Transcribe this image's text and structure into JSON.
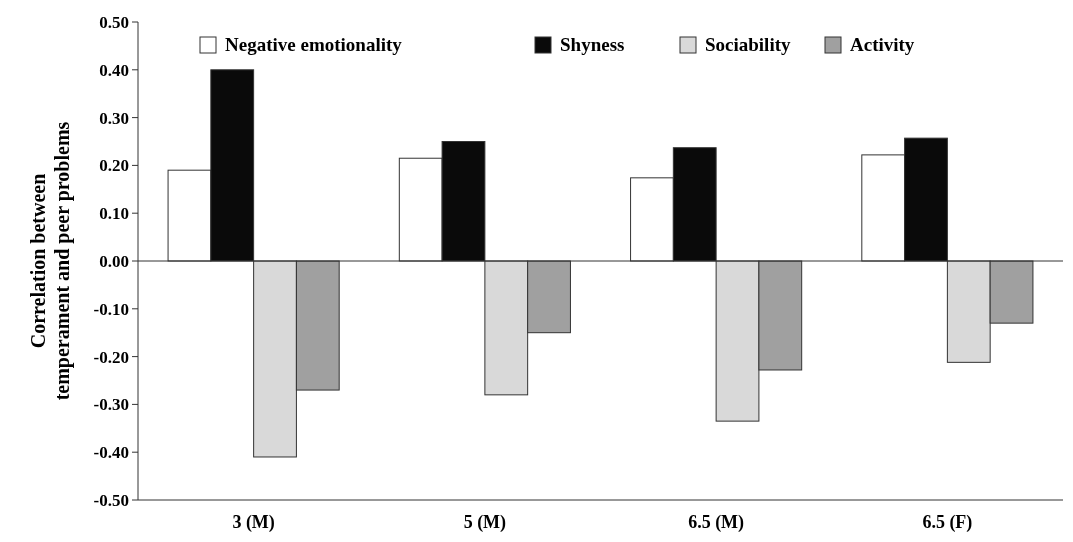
{
  "chart_data": {
    "type": "bar",
    "ylabel": "Correlation between\ntemperament and peer problems",
    "categories": [
      "3 (M)",
      "5 (M)",
      "6.5 (M)",
      "6.5 (F)"
    ],
    "series": [
      {
        "name": "Negative emotionality",
        "color": "#ffffff",
        "values": [
          0.19,
          0.215,
          0.174,
          0.222
        ]
      },
      {
        "name": "Shyness",
        "color": "#0a0a0a",
        "values": [
          0.4,
          0.25,
          0.237,
          0.257
        ]
      },
      {
        "name": "Sociability",
        "color": "#d9d9d9",
        "values": [
          -0.41,
          -0.28,
          -0.335,
          -0.212
        ]
      },
      {
        "name": "Activity",
        "color": "#a0a0a0",
        "values": [
          -0.27,
          -0.15,
          -0.228,
          -0.13
        ]
      }
    ],
    "ylim": [
      -0.5,
      0.5
    ],
    "yticks": [
      {
        "value": 0.5,
        "label": "0.50"
      },
      {
        "value": 0.4,
        "label": "0.40"
      },
      {
        "value": 0.3,
        "label": "0.30"
      },
      {
        "value": 0.2,
        "label": "0.20"
      },
      {
        "value": 0.1,
        "label": "0.10"
      },
      {
        "value": 0,
        "label": "0.00"
      },
      {
        "value": -0.1,
        "label": "-0.10"
      },
      {
        "value": -0.2,
        "label": "-0.20"
      },
      {
        "value": -0.3,
        "label": "-0.30"
      },
      {
        "value": -0.4,
        "label": "-0.40"
      },
      {
        "value": -0.5,
        "label": "-0.50"
      }
    ],
    "legend": "top"
  }
}
